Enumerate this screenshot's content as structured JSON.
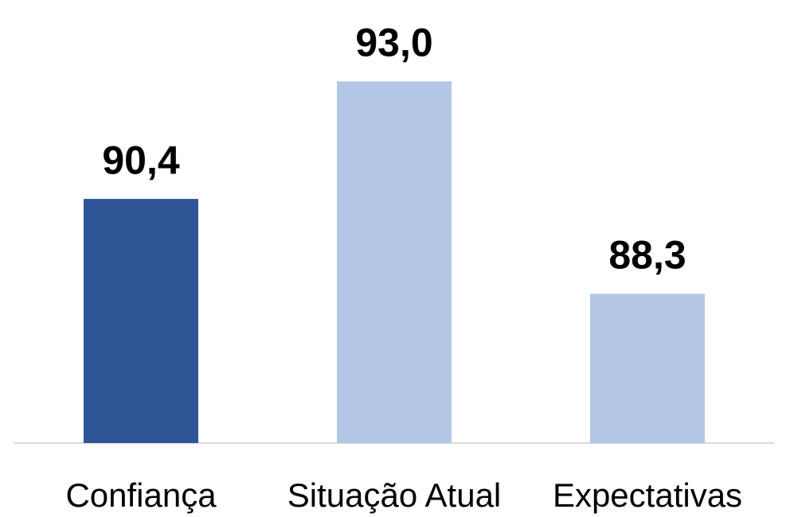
{
  "chart_data": {
    "type": "bar",
    "categories": [
      "Confiança",
      "Situação Atual",
      "Expectativas"
    ],
    "values": [
      90.4,
      93.0,
      88.3
    ],
    "value_labels": [
      "90,4",
      "93,0",
      "88,3"
    ],
    "colors": [
      "#2f5597",
      "#b4c7e7",
      "#b4c7e7"
    ],
    "ylim": [
      85,
      94.8
    ],
    "grid": false
  }
}
